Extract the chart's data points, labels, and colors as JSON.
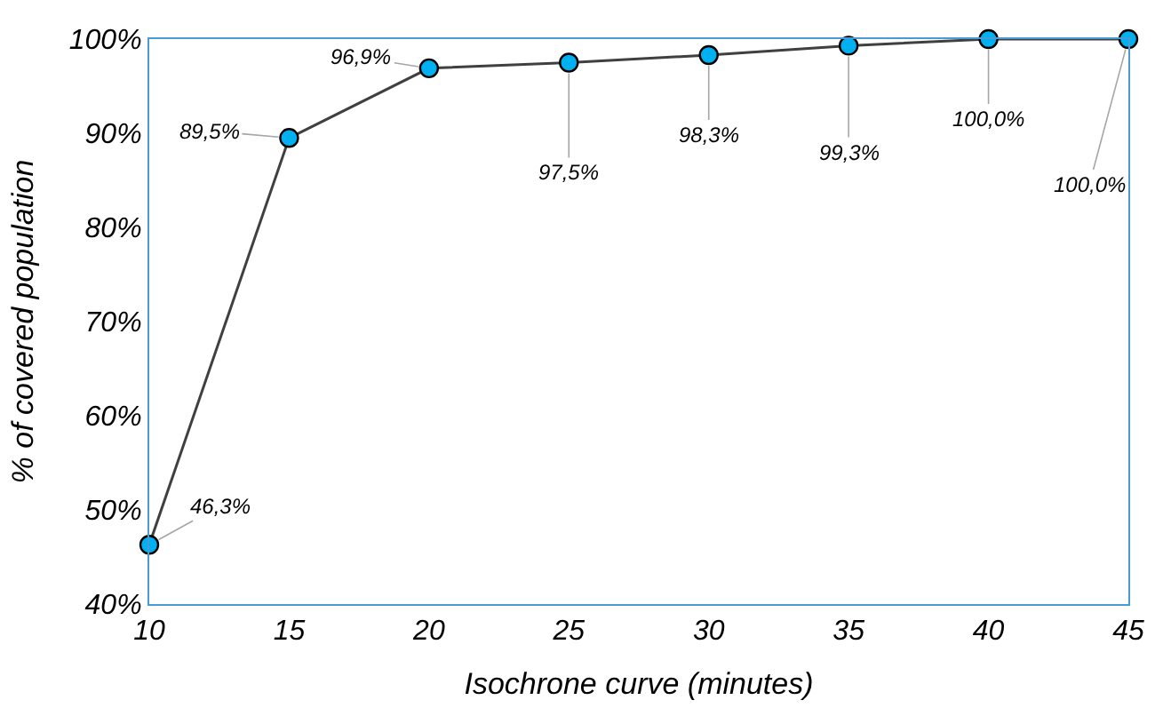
{
  "chart_data": {
    "type": "line",
    "xlabel": "Isochrone curve (minutes)",
    "ylabel": "% of covered population",
    "x": [
      10,
      15,
      20,
      25,
      30,
      35,
      40,
      45
    ],
    "series": [
      {
        "color": "#404040",
        "values": [
          46.3,
          89.5,
          96.9,
          97.5,
          98.3,
          99.3,
          100.0,
          100.0
        ],
        "colors": [
          "#00b0f0",
          "#00b0f0",
          "#00b0f0",
          "#00b0f0",
          "#00b0f0",
          "#00b0f0",
          "#00b0f0",
          "#00b0f0"
        ],
        "value_labels": [
          "46,3%",
          "89,5%",
          "96,9%",
          "97,5%",
          "98,3%",
          "99,3%",
          "100,0%",
          "100,0%"
        ]
      }
    ],
    "marker": "circle",
    "xlim": [
      10,
      45
    ],
    "xticks": [
      10,
      15,
      20,
      25,
      30,
      35,
      40,
      45
    ],
    "ylim": [
      40,
      100
    ],
    "yticks": [
      {
        "value": 40,
        "label": "40%"
      },
      {
        "value": 50,
        "label": "50%"
      },
      {
        "value": 60,
        "label": "60%"
      },
      {
        "value": 70,
        "label": "70%"
      },
      {
        "value": 80,
        "label": "80%"
      },
      {
        "value": 90,
        "label": "90%"
      },
      {
        "value": 100,
        "label": "100%"
      }
    ]
  }
}
